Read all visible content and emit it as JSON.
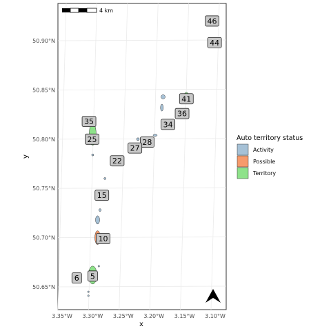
{
  "map": {
    "xlabel": "x",
    "ylabel": "y",
    "x_ticks": [
      "3.35°W",
      "3.30°W",
      "3.25°W",
      "3.20°W",
      "3.15°W",
      "3.10°W"
    ],
    "y_ticks": [
      "50.65°N",
      "50.70°N",
      "50.75°N",
      "50.80°N",
      "50.85°N",
      "50.90°N"
    ],
    "scale_bar_label": "4 km",
    "north_arrow_icon": "north-arrow-icon",
    "legend": {
      "title": "Auto territory status",
      "items": [
        {
          "label": "Activity",
          "color": "#a6c1d6"
        },
        {
          "label": "Possible",
          "color": "#f69a6b"
        },
        {
          "label": "Territory",
          "color": "#8ee28a"
        }
      ]
    },
    "territories": [
      {
        "id": "46",
        "lon": -3.105,
        "lat": 50.92,
        "status": "none"
      },
      {
        "id": "44",
        "lon": -3.101,
        "lat": 50.898,
        "status": "none"
      },
      {
        "id": "41",
        "lon": -3.147,
        "lat": 50.841,
        "status": "territory"
      },
      {
        "id": "36",
        "lon": -3.154,
        "lat": 50.826,
        "status": "possible"
      },
      {
        "id": "34",
        "lon": -3.177,
        "lat": 50.815,
        "status": "territory"
      },
      {
        "id": "35",
        "lon": -3.306,
        "lat": 50.818,
        "status": "territory"
      },
      {
        "id": "28",
        "lon": -3.211,
        "lat": 50.797,
        "status": "activity"
      },
      {
        "id": "25",
        "lon": -3.301,
        "lat": 50.8,
        "status": "territory"
      },
      {
        "id": "27",
        "lon": -3.231,
        "lat": 50.791,
        "status": "possible"
      },
      {
        "id": "22",
        "lon": -3.26,
        "lat": 50.778,
        "status": "territory"
      },
      {
        "id": "15",
        "lon": -3.285,
        "lat": 50.743,
        "status": "territory"
      },
      {
        "id": "10",
        "lon": -3.283,
        "lat": 50.699,
        "status": "possible"
      },
      {
        "id": "6",
        "lon": -3.326,
        "lat": 50.659,
        "status": "territory"
      },
      {
        "id": "5",
        "lon": -3.3,
        "lat": 50.661,
        "status": "territory"
      }
    ]
  }
}
